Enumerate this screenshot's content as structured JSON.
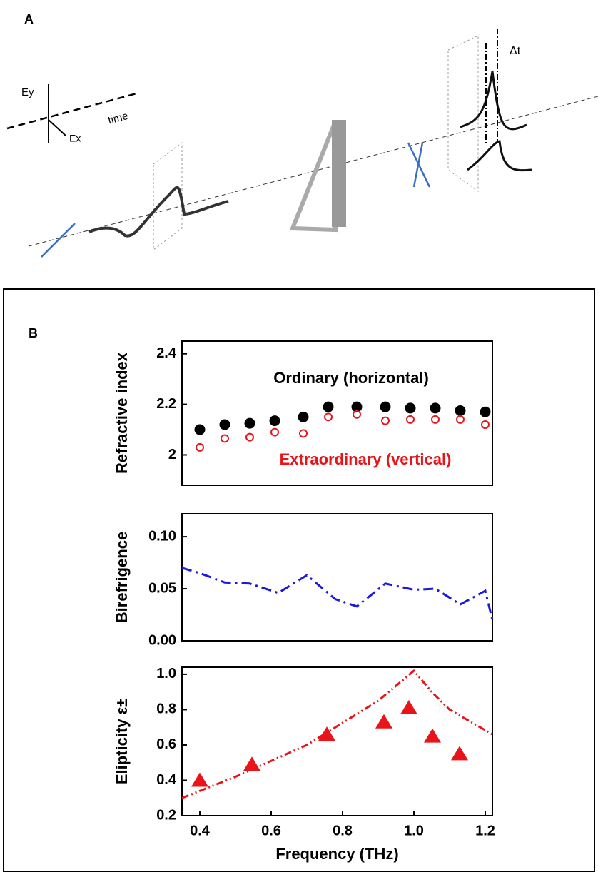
{
  "panel_a": {
    "label": "A",
    "axis_labels": [
      "Ey",
      "Ex",
      "time"
    ],
    "delay_label": "Δt"
  },
  "panel_b_label": "B",
  "chart_data": [
    {
      "type": "scatter",
      "ylabel": "Refractive index",
      "xlim": [
        0.35,
        1.22
      ],
      "ylim": [
        1.88,
        2.45
      ],
      "yticks": [
        2.0,
        2.2,
        2.4
      ],
      "series": [
        {
          "name": "Ordinary (horizontal)",
          "color": "#000000",
          "style": "filled-circle",
          "x": [
            0.4,
            0.47,
            0.54,
            0.61,
            0.69,
            0.76,
            0.84,
            0.92,
            0.99,
            1.06,
            1.13,
            1.2
          ],
          "values": [
            2.1,
            2.12,
            2.125,
            2.135,
            2.15,
            2.19,
            2.19,
            2.19,
            2.185,
            2.185,
            2.175,
            2.17
          ]
        },
        {
          "name": "Extraordinary (vertical)",
          "color": "#e8141a",
          "style": "open-circle",
          "x": [
            0.4,
            0.47,
            0.54,
            0.61,
            0.69,
            0.76,
            0.84,
            0.92,
            0.99,
            1.06,
            1.13,
            1.2
          ],
          "values": [
            2.03,
            2.065,
            2.07,
            2.09,
            2.085,
            2.15,
            2.16,
            2.135,
            2.14,
            2.14,
            2.14,
            2.12
          ]
        }
      ]
    },
    {
      "type": "line",
      "ylabel": "Birefrigence",
      "xlim": [
        0.35,
        1.22
      ],
      "ylim": [
        0,
        0.122
      ],
      "yticks": [
        {
          "value": 0,
          "label": "0.00"
        },
        0.05,
        {
          "value": 0.1,
          "label": "0.10"
        }
      ],
      "series": [
        {
          "color": "#1a1adc",
          "style": "dash-dot",
          "x": [
            0.35,
            0.4,
            0.47,
            0.54,
            0.62,
            0.7,
            0.78,
            0.84,
            0.92,
            1.0,
            1.06,
            1.13,
            1.2,
            1.22
          ],
          "values": [
            0.07,
            0.065,
            0.056,
            0.055,
            0.046,
            0.063,
            0.04,
            0.033,
            0.055,
            0.049,
            0.05,
            0.035,
            0.048,
            0.02
          ]
        }
      ]
    },
    {
      "type": "scatter",
      "ylabel": "Elipticity ε±",
      "xlabel": "Frequency (THz)",
      "xlim": [
        0.35,
        1.22
      ],
      "ylim": [
        0.2,
        1.04
      ],
      "yticks": [
        0.2,
        0.4,
        0.6,
        0.8,
        {
          "value": 1.0,
          "label": "1.0"
        }
      ],
      "xticks": [
        0.4,
        0.6,
        0.8,
        {
          "value": 1.0,
          "label": "1.0"
        },
        1.2
      ],
      "series": [
        {
          "color": "#e8141a",
          "style": "triangle",
          "x": [
            0.4,
            0.546,
            0.756,
            0.916,
            0.986,
            1.052,
            1.128
          ],
          "values": [
            0.4,
            0.49,
            0.66,
            0.73,
            0.81,
            0.65,
            0.55
          ]
        },
        {
          "color": "#e8141a",
          "style": "dash-dot-dot",
          "x": [
            0.35,
            0.5,
            0.7,
            0.9,
            1.0,
            1.05,
            1.1,
            1.22
          ],
          "values": [
            0.3,
            0.42,
            0.6,
            0.85,
            1.02,
            0.9,
            0.8,
            0.66
          ]
        }
      ]
    }
  ]
}
